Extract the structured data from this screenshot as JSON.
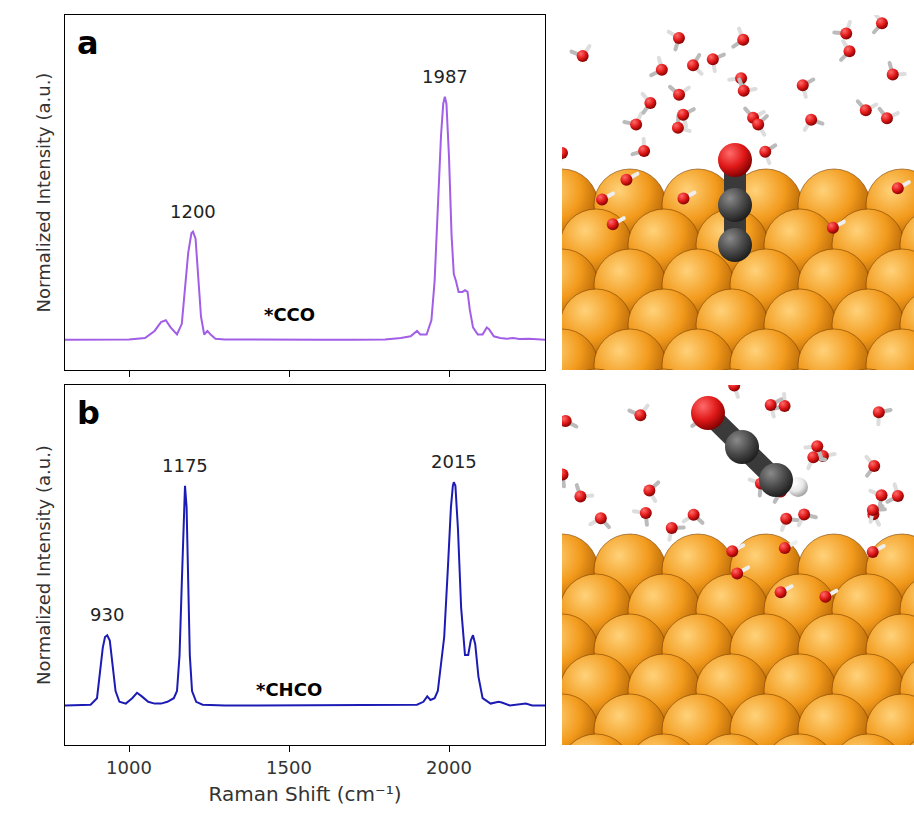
{
  "chart_data": [
    {
      "type": "line",
      "panel_label": "a",
      "species_label": {
        "text": "*CCO",
        "x": 1500,
        "y": 0.12
      },
      "ylabel": "Normalized Intensity (a.u.)",
      "tick_labels": false,
      "color": "#a25ee6",
      "xlim": [
        800,
        2300
      ],
      "xticks": [
        1000,
        1500,
        2000
      ],
      "ylim": [
        0,
        1
      ],
      "x": [
        800,
        900,
        1000,
        1050,
        1080,
        1100,
        1115,
        1130,
        1150,
        1165,
        1175,
        1185,
        1195,
        1200,
        1208,
        1215,
        1225,
        1235,
        1245,
        1255,
        1270,
        1300,
        1400,
        1500,
        1600,
        1700,
        1800,
        1850,
        1880,
        1900,
        1910,
        1930,
        1945,
        1955,
        1965,
        1975,
        1982,
        1987,
        1992,
        2000,
        2008,
        2015,
        2022,
        2030,
        2042,
        2050,
        2058,
        2065,
        2075,
        2090,
        2105,
        2118,
        2125,
        2140,
        2160,
        2180,
        2200,
        2220,
        2250,
        2280,
        2300
      ],
      "values": [
        0.085,
        0.085,
        0.086,
        0.09,
        0.11,
        0.135,
        0.14,
        0.12,
        0.1,
        0.13,
        0.22,
        0.33,
        0.385,
        0.39,
        0.37,
        0.28,
        0.15,
        0.1,
        0.11,
        0.1,
        0.088,
        0.086,
        0.085,
        0.085,
        0.085,
        0.085,
        0.086,
        0.09,
        0.095,
        0.11,
        0.1,
        0.1,
        0.14,
        0.25,
        0.45,
        0.66,
        0.75,
        0.77,
        0.75,
        0.6,
        0.38,
        0.27,
        0.25,
        0.22,
        0.22,
        0.225,
        0.22,
        0.17,
        0.12,
        0.1,
        0.1,
        0.12,
        0.115,
        0.095,
        0.09,
        0.088,
        0.09,
        0.087,
        0.088,
        0.086,
        0.085
      ],
      "annotations": [
        {
          "text": "1200",
          "x": 1200,
          "y": 0.39
        },
        {
          "text": "1987",
          "x": 1987,
          "y": 0.77
        }
      ]
    },
    {
      "type": "line",
      "panel_label": "b",
      "species_label": {
        "text": "*CHCO",
        "x": 1500,
        "y": 0.12
      },
      "xlabel": "Raman Shift (cm⁻¹)",
      "ylabel": "Normalized Intensity (a.u.)",
      "tick_labels": "x",
      "color": "#1c1cb4",
      "xlim": [
        800,
        2300
      ],
      "xticks": [
        1000,
        1500,
        2000
      ],
      "ylim": [
        0,
        1
      ],
      "x": [
        800,
        850,
        880,
        900,
        910,
        918,
        925,
        932,
        940,
        948,
        958,
        970,
        990,
        1010,
        1025,
        1040,
        1060,
        1080,
        1100,
        1120,
        1140,
        1150,
        1158,
        1165,
        1170,
        1175,
        1180,
        1185,
        1190,
        1197,
        1210,
        1230,
        1300,
        1400,
        1500,
        1600,
        1700,
        1800,
        1850,
        1900,
        1920,
        1932,
        1942,
        1955,
        1965,
        1985,
        1997,
        2006,
        2012,
        2015,
        2020,
        2028,
        2038,
        2050,
        2060,
        2068,
        2075,
        2082,
        2092,
        2105,
        2130,
        2155,
        2165,
        2190,
        2240,
        2260,
        2300
      ],
      "values": [
        0.11,
        0.11,
        0.112,
        0.13,
        0.2,
        0.27,
        0.3,
        0.305,
        0.29,
        0.23,
        0.15,
        0.12,
        0.115,
        0.13,
        0.145,
        0.135,
        0.12,
        0.115,
        0.115,
        0.12,
        0.13,
        0.15,
        0.25,
        0.45,
        0.62,
        0.72,
        0.66,
        0.45,
        0.25,
        0.15,
        0.12,
        0.112,
        0.11,
        0.11,
        0.11,
        0.11,
        0.11,
        0.11,
        0.111,
        0.112,
        0.12,
        0.135,
        0.125,
        0.13,
        0.15,
        0.3,
        0.5,
        0.66,
        0.72,
        0.73,
        0.72,
        0.6,
        0.38,
        0.25,
        0.25,
        0.29,
        0.305,
        0.28,
        0.19,
        0.13,
        0.115,
        0.12,
        0.118,
        0.11,
        0.115,
        0.11,
        0.11
      ],
      "annotations": [
        {
          "text": "930",
          "x": 930,
          "y": 0.305
        },
        {
          "text": "1175",
          "x": 1175,
          "y": 0.72
        },
        {
          "text": "2015",
          "x": 2015,
          "y": 0.73
        }
      ]
    }
  ]
}
